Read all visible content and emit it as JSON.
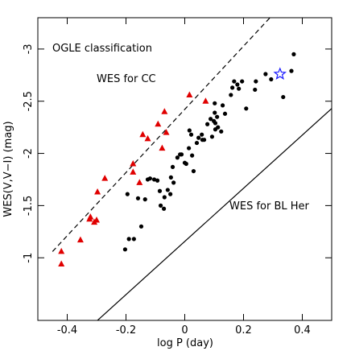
{
  "chart_data": {
    "type": "scatter",
    "xlabel": "log P (day)",
    "ylabel": "WES(V,V−I) (mag)",
    "xlim": [
      -0.5,
      0.5
    ],
    "ylim": [
      -3.3,
      -0.4
    ],
    "y_inverted": true,
    "xticks": [
      -0.4,
      -0.2,
      0,
      0.2,
      0.4
    ],
    "yticks": [
      -3,
      -2.5,
      -2,
      -1.5,
      -1
    ],
    "annotations": [
      "OGLE classification",
      "WES for CC",
      "WES for BL Her"
    ],
    "lines": [
      {
        "x": [
          -0.45,
          0.29
        ],
        "y": [
          -1.06,
          -3.3
        ],
        "style": "dashed",
        "color": "#000000"
      },
      {
        "x": [
          -0.297,
          0.5
        ],
        "y": [
          -0.4,
          -2.43
        ],
        "style": "solid",
        "color": "#000000"
      }
    ],
    "series": [
      {
        "marker": "triangle",
        "color": "#e00000",
        "x": [
          -0.42,
          -0.42,
          -0.355,
          -0.324,
          -0.321,
          -0.308,
          -0.3,
          -0.297,
          -0.272,
          -0.176,
          -0.176,
          -0.154,
          -0.143,
          -0.126,
          -0.091,
          -0.077,
          -0.069,
          -0.063,
          0.016,
          0.071
        ],
        "values": [
          -1.06,
          -0.94,
          -1.17,
          -1.37,
          -1.39,
          -1.34,
          -1.36,
          -1.63,
          -1.76,
          -1.9,
          -1.82,
          -1.72,
          -2.18,
          -2.14,
          -2.28,
          -2.05,
          -2.4,
          -2.2,
          -2.56,
          -2.5
        ]
      },
      {
        "marker": "circle",
        "color": "#000000",
        "x": [
          -0.203,
          -0.19,
          -0.173,
          -0.148,
          -0.195,
          -0.159,
          -0.135,
          -0.126,
          -0.118,
          -0.104,
          -0.093,
          -0.085,
          -0.082,
          -0.071,
          -0.069,
          -0.058,
          -0.049,
          -0.047,
          -0.041,
          -0.038,
          -0.025,
          -0.016,
          -0.011,
          0,
          0.005,
          0.014,
          0.016,
          0.022,
          0.025,
          0.03,
          0.041,
          0.047,
          0.058,
          0.06,
          0.066,
          0.077,
          0.088,
          0.093,
          0.099,
          0.102,
          0.102,
          0.104,
          0.104,
          0.11,
          0.113,
          0.124,
          0.129,
          0.137,
          0.157,
          0.162,
          0.168,
          0.179,
          0.184,
          0.195,
          0.209,
          0.239,
          0.242,
          0.275,
          0.294,
          0.335,
          0.363,
          0.371
        ],
        "values": [
          -1.08,
          -1.18,
          -1.18,
          -1.3,
          -1.61,
          -1.57,
          -1.56,
          -1.75,
          -1.76,
          -1.75,
          -1.74,
          -1.64,
          -1.5,
          -1.47,
          -1.58,
          -1.65,
          -1.61,
          -1.77,
          -1.87,
          -1.72,
          -1.96,
          -1.99,
          -1.99,
          -1.91,
          -1.9,
          -2.05,
          -2.22,
          -2.18,
          -1.98,
          -1.83,
          -2.1,
          -2.15,
          -2.18,
          -2.13,
          -2.13,
          -2.28,
          -2.33,
          -2.16,
          -2.31,
          -2.48,
          -2.39,
          -2.29,
          -2.23,
          -2.35,
          -2.25,
          -2.21,
          -2.46,
          -2.38,
          -2.56,
          -2.63,
          -2.69,
          -2.66,
          -2.62,
          -2.69,
          -2.43,
          -2.61,
          -2.69,
          -2.76,
          -2.71,
          -2.54,
          -2.79,
          -2.95
        ]
      },
      {
        "marker": "star",
        "color": "#1a1aff",
        "x": [
          0.324
        ],
        "values": [
          -2.76
        ]
      }
    ]
  }
}
